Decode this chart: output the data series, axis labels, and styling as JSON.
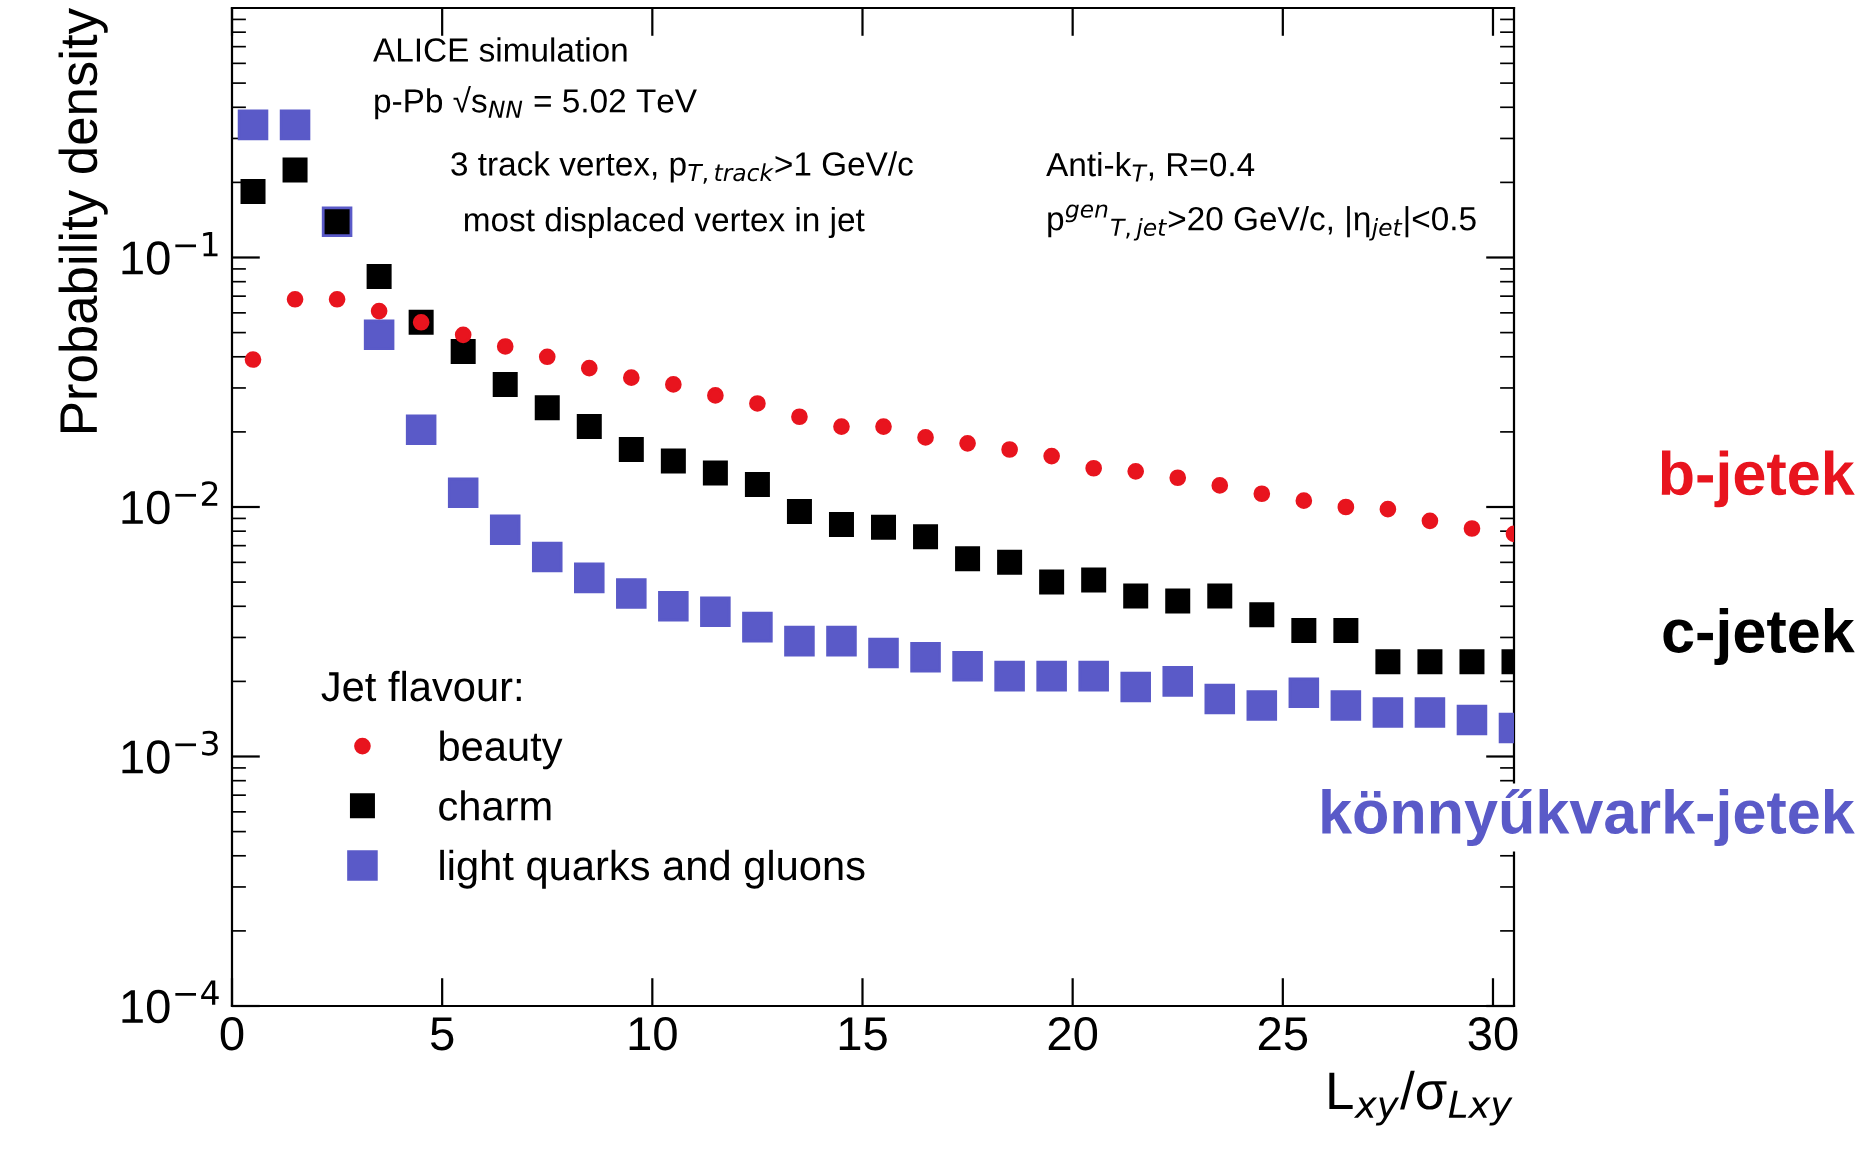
{
  "chart_data": {
    "type": "scatter",
    "xlabel": "L$_{xy}$/σ$_{Lxy}$",
    "ylabel": "Probability density",
    "legend_title": "Jet flavour:",
    "x": [
      0.5,
      1.5,
      2.5,
      3.5,
      4.5,
      5.5,
      6.5,
      7.5,
      8.5,
      9.5,
      10.5,
      11.5,
      12.5,
      13.5,
      14.5,
      15.5,
      16.5,
      17.5,
      18.5,
      19.5,
      20.5,
      21.5,
      22.5,
      23.5,
      24.5,
      25.5,
      26.5,
      27.5,
      28.5,
      29.5,
      30.5
    ],
    "series": [
      {
        "name": "beauty",
        "color": "#e8141e",
        "marker": "circle",
        "values": [
          0.039,
          0.068,
          0.068,
          0.061,
          0.055,
          0.049,
          0.044,
          0.04,
          0.036,
          0.033,
          0.031,
          0.028,
          0.026,
          0.023,
          0.021,
          0.021,
          0.019,
          0.018,
          0.017,
          0.016,
          0.0143,
          0.0139,
          0.0131,
          0.0122,
          0.0113,
          0.0106,
          0.01,
          0.0098,
          0.0088,
          0.0082,
          0.0078
        ]
      },
      {
        "name": "charm",
        "color": "#000000",
        "marker": "square",
        "values": [
          0.184,
          0.224,
          0.139,
          0.084,
          0.055,
          0.042,
          0.031,
          0.025,
          0.021,
          0.017,
          0.0153,
          0.0137,
          0.0123,
          0.0096,
          0.0085,
          0.0083,
          0.0076,
          0.0062,
          0.006,
          0.005,
          0.0051,
          0.0044,
          0.0042,
          0.0044,
          0.0037,
          0.0032,
          0.0032,
          0.0024,
          0.0024,
          0.0024,
          0.0024
        ]
      },
      {
        "name": "light quarks and gluons",
        "color": "#5a5ac8",
        "marker": "square",
        "values": [
          0.34,
          0.34,
          0.139,
          0.049,
          0.0204,
          0.0114,
          0.0081,
          0.0063,
          0.0052,
          0.0045,
          0.004,
          0.0038,
          0.0033,
          0.0029,
          0.0029,
          0.0026,
          0.0025,
          0.0023,
          0.0021,
          0.0021,
          0.0021,
          0.0019,
          0.002,
          0.0017,
          0.0016,
          0.0018,
          0.0016,
          0.0015,
          0.0015,
          0.0014,
          0.0013
        ]
      }
    ],
    "log": "y",
    "xlim": [
      0,
      30.5
    ],
    "ylim": [
      0.0001,
      1
    ],
    "xticks": [
      0,
      5,
      10,
      15,
      20,
      25,
      30
    ],
    "yticks": [
      {
        "value": 0.0001,
        "label": "10$^{−4}$"
      },
      {
        "value": 0.001,
        "label": "10$^{−3}$"
      },
      {
        "value": 0.01,
        "label": "10$^{−2}$"
      },
      {
        "value": 0.1,
        "label": "10$^{−1}$"
      }
    ],
    "grid": false,
    "legend": "bottom left",
    "annotations": [
      "ALICE simulation",
      "p-Pb √s$_{NN}$ = 5.02 TeV",
      "3 track vertex, p$_{T,track}$>1 GeV/c",
      "most displaced vertex in jet",
      "Anti-k$_{T}$, R=0.4",
      "p$^{gen}$$_{T,jet}$>20 GeV/c, |η$_{jet}$|<0.5",
      "b-jetek",
      "c-jetek",
      "könnyűkvark-jetek"
    ]
  }
}
